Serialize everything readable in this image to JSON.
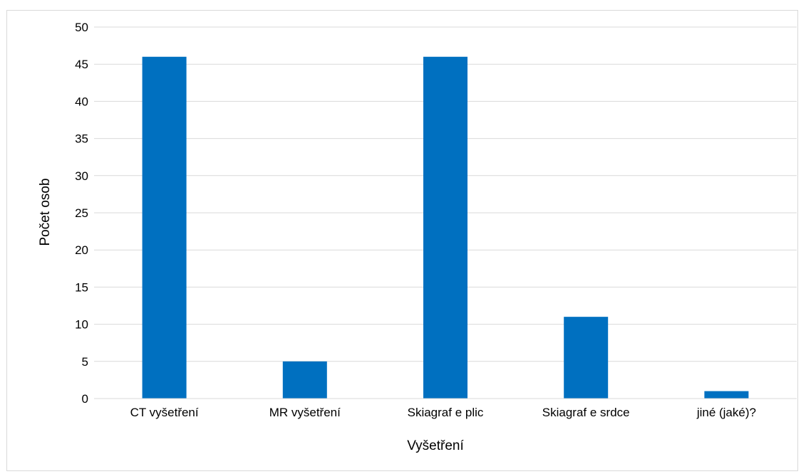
{
  "chart_data": {
    "type": "bar",
    "title": "",
    "categories": [
      "CT vyšetření",
      "MR vyšetření",
      "Skiagraf e plic",
      "Skiagraf e srdce",
      "jiné (jaké)?"
    ],
    "values": [
      46,
      5,
      46,
      11,
      1
    ],
    "xlabel": "Vyšetření",
    "ylabel": "Počet osob",
    "ylim": [
      0,
      50
    ],
    "yticks": [
      "0",
      "5",
      "10",
      "15",
      "20",
      "25",
      "30",
      "35",
      "40",
      "45",
      "50"
    ],
    "grid": true,
    "legend": "none",
    "bar_color": "#0070c0",
    "grid_color": "#d9d9d9"
  }
}
